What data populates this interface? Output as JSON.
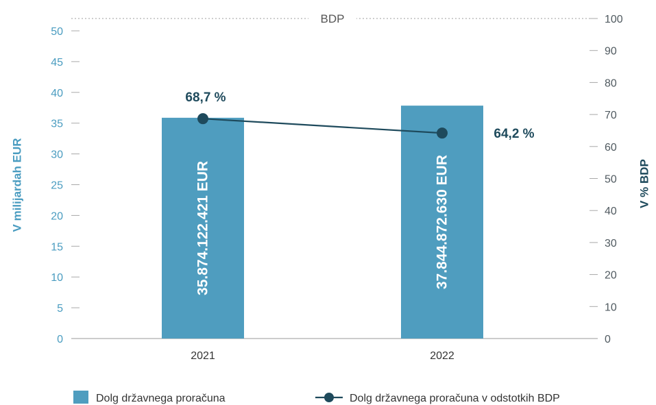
{
  "chart_data": {
    "type": "bar",
    "categories": [
      "2021",
      "2022"
    ],
    "series": [
      {
        "name": "Dolg državnega proračuna",
        "type": "bar",
        "axis": "left",
        "values": [
          35.874122421,
          37.84487263
        ],
        "labels": [
          "35.874.122.421 EUR",
          "37.844.872.630 EUR"
        ],
        "color": "#4f9dbf"
      },
      {
        "name": "Dolg državnega proračuna v odstotkih BDP",
        "type": "line",
        "axis": "right",
        "values": [
          68.7,
          64.2
        ],
        "labels": [
          "68,7 %",
          "64,2 %"
        ],
        "color": "#1e4a5c"
      }
    ],
    "ylabel": "V milijardah EUR",
    "y2label": "V % BDP",
    "ylim": [
      0,
      50
    ],
    "y2lim": [
      0,
      100
    ],
    "yticks": [
      "0",
      "5",
      "10",
      "15",
      "20",
      "25",
      "30",
      "35",
      "40",
      "45",
      "50"
    ],
    "y2ticks": [
      "0",
      "10",
      "20",
      "30",
      "40",
      "50",
      "60",
      "70",
      "80",
      "90",
      "100"
    ],
    "reference_line": {
      "label": "BDP",
      "value": 100,
      "axis": "right"
    },
    "legend": "bottom",
    "grid": false
  }
}
